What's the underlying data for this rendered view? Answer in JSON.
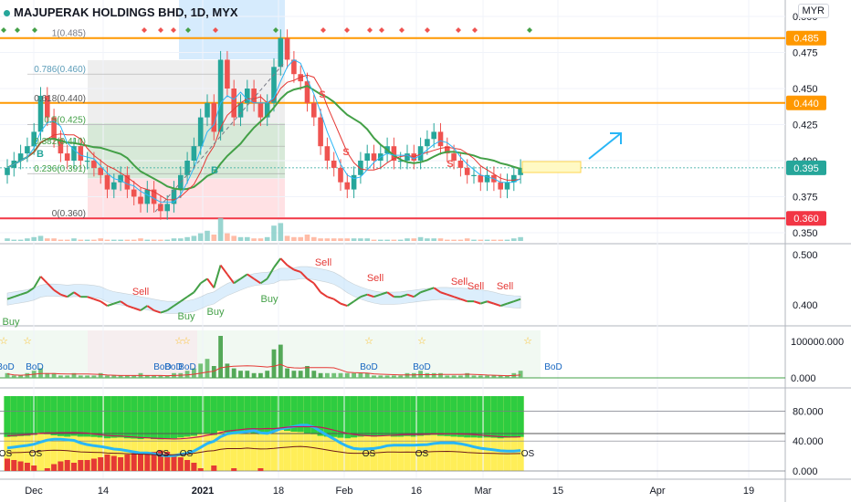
{
  "header": {
    "title": "MAJUPERAK HOLDINGS BHD, 1D, MYX",
    "currency": "MYR"
  },
  "chart_data": [
    {
      "type": "candlestick",
      "pane": "price",
      "title": "MAJUPERAK HOLDINGS BHD, 1D, MYX",
      "x_ticks": [
        "Dec",
        "14",
        "2021",
        "18",
        "Feb",
        "16",
        "Mar",
        "15",
        "Apr",
        "19"
      ],
      "y_ticks": [
        "0.350",
        "0.375",
        "0.400",
        "0.425",
        "0.450",
        "0.475",
        "0.500"
      ],
      "ylim": [
        0.345,
        0.515
      ],
      "price_labels": [
        {
          "label": "0.485",
          "value": 0.485,
          "color": "#ff9800"
        },
        {
          "label": "0.440",
          "value": 0.44,
          "color": "#ff9800"
        },
        {
          "label": "0.395",
          "value": 0.395,
          "color": "#26a69a"
        },
        {
          "label": "0.360",
          "value": 0.36,
          "color": "#f23645"
        }
      ],
      "fib_levels": [
        {
          "label": "1(0.485)",
          "value": 0.485
        },
        {
          "label": "0.786(0.460)",
          "value": 0.46
        },
        {
          "label": "0.618(0.440)",
          "value": 0.44
        },
        {
          "label": "0.5(0.425)",
          "value": 0.425
        },
        {
          "label": "0.382(0.410)",
          "value": 0.41
        },
        {
          "label": "0.236(0.391)",
          "value": 0.391
        },
        {
          "label": "0(0.360)",
          "value": 0.36
        }
      ],
      "close_values": [
        0.395,
        0.4,
        0.405,
        0.41,
        0.42,
        0.445,
        0.43,
        0.415,
        0.405,
        0.4,
        0.41,
        0.4,
        0.4,
        0.395,
        0.39,
        0.38,
        0.385,
        0.39,
        0.38,
        0.375,
        0.37,
        0.38,
        0.37,
        0.365,
        0.37,
        0.38,
        0.39,
        0.4,
        0.41,
        0.43,
        0.44,
        0.42,
        0.47,
        0.45,
        0.43,
        0.44,
        0.45,
        0.44,
        0.43,
        0.44,
        0.465,
        0.485,
        0.47,
        0.46,
        0.455,
        0.44,
        0.43,
        0.41,
        0.4,
        0.395,
        0.385,
        0.38,
        0.39,
        0.4,
        0.405,
        0.4,
        0.405,
        0.41,
        0.4,
        0.4,
        0.405,
        0.4,
        0.41,
        0.415,
        0.42,
        0.41,
        0.405,
        0.4,
        0.395,
        0.39,
        0.39,
        0.385,
        0.39,
        0.385,
        0.38,
        0.385,
        0.39,
        0.395
      ],
      "volume_values": [
        2,
        1,
        1,
        2,
        3,
        4,
        2,
        2,
        1,
        1,
        2,
        1,
        1,
        1,
        2,
        1,
        1,
        1,
        1,
        1,
        2,
        1,
        1,
        1,
        1,
        2,
        2,
        3,
        4,
        6,
        8,
        5,
        18,
        6,
        4,
        3,
        3,
        2,
        2,
        3,
        12,
        14,
        4,
        3,
        3,
        5,
        3,
        2,
        2,
        2,
        2,
        2,
        2,
        2,
        2,
        1,
        1,
        1,
        1,
        1,
        2,
        2,
        3,
        2,
        2,
        2,
        1,
        1,
        1,
        2,
        1,
        1,
        1,
        1,
        1,
        1,
        2,
        3
      ],
      "markers": [
        "S",
        "S",
        "S",
        "B",
        "B"
      ]
    },
    {
      "type": "line",
      "pane": "oscillator-1",
      "y_ticks": [
        "0.400",
        "0.500"
      ],
      "ylim": [
        0.36,
        0.52
      ],
      "annotations": [
        "Buy",
        "Buy",
        "Buy",
        "Buy",
        "Sell",
        "Sell",
        "Sell",
        "Sell",
        "Sell",
        "Sell",
        "Sell"
      ]
    },
    {
      "type": "bar",
      "pane": "volume-oscillator",
      "y_ticks": [
        "0.000",
        "100000.000"
      ],
      "annotations": [
        "BoD",
        "BoD",
        "BoD",
        "BoD",
        "BoD",
        "BoD",
        "BoD",
        "BoD"
      ]
    },
    {
      "type": "area",
      "pane": "oscillator-2",
      "y_ticks": [
        "0.000",
        "40.000",
        "80.000"
      ],
      "ylim": [
        -5,
        100
      ],
      "annotations": [
        "OS",
        "OS",
        "OS",
        "OS",
        "OS",
        "OS",
        "OS",
        "OS"
      ]
    }
  ],
  "colors": {
    "up": "#26a69a",
    "down": "#ef5350",
    "ema_green": "#43a047",
    "ema_red": "#e53935",
    "orange_level": "#ff9800",
    "red_level": "#f23645",
    "cyan": "#29b6f6"
  }
}
